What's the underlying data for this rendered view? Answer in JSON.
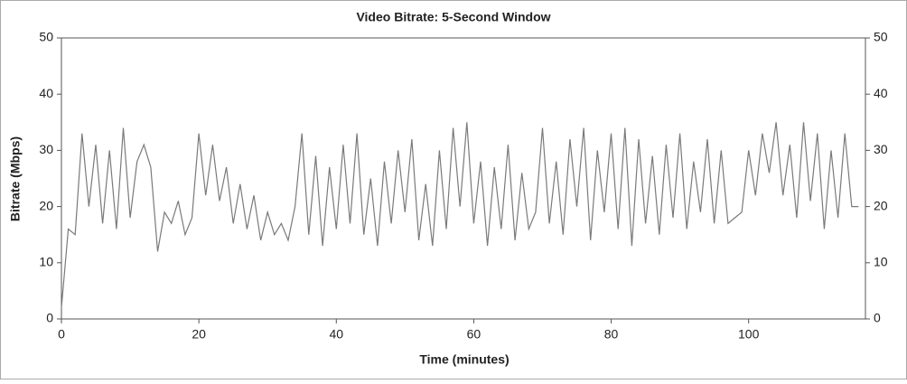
{
  "chart_data": {
    "type": "line",
    "title": "Video Bitrate: 5-Second Window",
    "x_label": "Time (minutes)",
    "y_label": "Bitrate (Mbps)",
    "color": "#7a7a7a",
    "x": [
      0,
      1,
      2,
      3,
      4,
      5,
      6,
      7,
      8,
      9,
      10,
      11,
      12,
      13,
      14,
      15,
      16,
      17,
      18,
      19,
      20,
      21,
      22,
      23,
      24,
      25,
      26,
      27,
      28,
      29,
      30,
      31,
      32,
      33,
      34,
      35,
      36,
      37,
      38,
      39,
      40,
      41,
      42,
      43,
      44,
      45,
      46,
      47,
      48,
      49,
      50,
      51,
      52,
      53,
      54,
      55,
      56,
      57,
      58,
      59,
      60,
      61,
      62,
      63,
      64,
      65,
      66,
      67,
      68,
      69,
      70,
      71,
      72,
      73,
      74,
      75,
      76,
      77,
      78,
      79,
      80,
      81,
      82,
      83,
      84,
      85,
      86,
      87,
      88,
      89,
      90,
      91,
      92,
      93,
      94,
      95,
      96,
      97,
      98,
      99,
      100,
      101,
      102,
      103,
      104,
      105,
      106,
      107,
      108,
      109,
      110,
      111,
      112,
      113,
      114,
      115,
      116
    ],
    "values": [
      2,
      16,
      15,
      33,
      20,
      31,
      17,
      30,
      16,
      34,
      18,
      28,
      31,
      27,
      12,
      19,
      17,
      21,
      15,
      18,
      33,
      22,
      31,
      21,
      27,
      17,
      24,
      16,
      22,
      14,
      19,
      15,
      17,
      14,
      20,
      33,
      15,
      29,
      13,
      27,
      16,
      31,
      17,
      33,
      15,
      25,
      13,
      28,
      17,
      30,
      19,
      32,
      14,
      24,
      13,
      30,
      16,
      34,
      20,
      35,
      17,
      28,
      13,
      27,
      16,
      31,
      14,
      26,
      16,
      19,
      34,
      17,
      28,
      15,
      32,
      20,
      34,
      14,
      30,
      19,
      33,
      16,
      34,
      13,
      32,
      17,
      29,
      15,
      31,
      18,
      33,
      16,
      28,
      19,
      32,
      17,
      30,
      17,
      18,
      19,
      30,
      22,
      33,
      26,
      35,
      22,
      31,
      18,
      35,
      21,
      33,
      16,
      30,
      18,
      33,
      20,
      20
    ],
    "xlim": [
      0,
      117
    ],
    "xticks": [
      0,
      20,
      40,
      60,
      80,
      100
    ],
    "ylim": [
      0,
      50
    ],
    "yticks": [
      0,
      10,
      20,
      30,
      40,
      50
    ],
    "y2lim": [
      0,
      50
    ],
    "y2ticks": [
      0,
      10,
      20,
      30,
      40,
      50
    ]
  }
}
